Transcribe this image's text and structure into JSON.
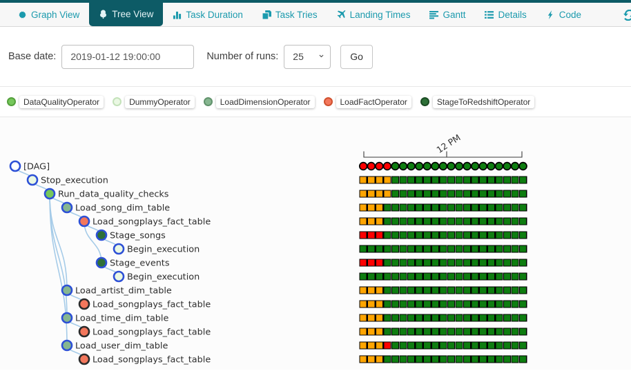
{
  "nav": {
    "accent": "#1b9aad",
    "active_bg": "#0d5b66",
    "active_fg": "#e4f3f5",
    "refresh_icon": "refresh-icon",
    "tabs": [
      {
        "label": "Graph View",
        "icon": "graph-view-icon",
        "active": false
      },
      {
        "label": "Tree View",
        "icon": "tree-view-icon",
        "active": true
      },
      {
        "label": "Task Duration",
        "icon": "task-duration-icon",
        "active": false
      },
      {
        "label": "Task Tries",
        "icon": "task-tries-icon",
        "active": false
      },
      {
        "label": "Landing Times",
        "icon": "landing-times-icon",
        "active": false
      },
      {
        "label": "Gantt",
        "icon": "gantt-icon",
        "active": false
      },
      {
        "label": "Details",
        "icon": "details-icon",
        "active": false
      },
      {
        "label": "Code",
        "icon": "code-icon",
        "active": false
      }
    ]
  },
  "form": {
    "base_date_label": "Base date:",
    "base_date_value": "2019-01-12 19:00:00",
    "runs_label": "Number of runs:",
    "runs_value": "25",
    "go_label": "Go"
  },
  "operators": {
    "DataQualityOperator": {
      "fill": "#76c75b",
      "border": "#54a03c"
    },
    "DummyOperator": {
      "fill": "#eaf8e3",
      "border": "#c4e2ba"
    },
    "LoadDimensionOperator": {
      "fill": "#86b690",
      "border": "#61926c"
    },
    "LoadFactOperator": {
      "fill": "#f3775c",
      "border": "#d0512f"
    },
    "StageToRedshiftOperator": {
      "fill": "#2e7038",
      "border": "#1c4c24"
    },
    "none": {
      "fill": "#ffffff",
      "border": "#ffffff"
    }
  },
  "legend_order": [
    "DataQualityOperator",
    "DummyOperator",
    "LoadDimensionOperator",
    "LoadFactOperator",
    "StageToRedshiftOperator"
  ],
  "ring_colors": {
    "blue": "#2d50d6",
    "black": "#2b2b2b"
  },
  "status_colors": {
    "S": "#0e7d10",
    "F": "#fe0000",
    "U": "#ffa500"
  },
  "edge_color": "#a5cbe8",
  "tree": {
    "nodes": [
      {
        "label": "[DAG]",
        "depth": 0,
        "operator": "none",
        "ring": "blue"
      },
      {
        "label": "Stop_execution",
        "depth": 1,
        "operator": "DummyOperator",
        "ring": "blue"
      },
      {
        "label": "Run_data_quality_checks",
        "depth": 2,
        "operator": "DataQualityOperator",
        "ring": "blue"
      },
      {
        "label": "Load_song_dim_table",
        "depth": 3,
        "operator": "LoadDimensionOperator",
        "ring": "blue"
      },
      {
        "label": "Load_songplays_fact_table",
        "depth": 4,
        "operator": "LoadFactOperator",
        "ring": "blue"
      },
      {
        "label": "Stage_songs",
        "depth": 5,
        "operator": "StageToRedshiftOperator",
        "ring": "blue"
      },
      {
        "label": "Begin_execution",
        "depth": 6,
        "operator": "DummyOperator",
        "ring": "blue"
      },
      {
        "label": "Stage_events",
        "depth": 5,
        "operator": "StageToRedshiftOperator",
        "ring": "blue"
      },
      {
        "label": "Begin_execution",
        "depth": 6,
        "operator": "DummyOperator",
        "ring": "blue"
      },
      {
        "label": "Load_artist_dim_table",
        "depth": 3,
        "operator": "LoadDimensionOperator",
        "ring": "blue"
      },
      {
        "label": "Load_songplays_fact_table",
        "depth": 4,
        "operator": "LoadFactOperator",
        "ring": "black"
      },
      {
        "label": "Load_time_dim_table",
        "depth": 3,
        "operator": "LoadDimensionOperator",
        "ring": "blue"
      },
      {
        "label": "Load_songplays_fact_table",
        "depth": 4,
        "operator": "LoadFactOperator",
        "ring": "black"
      },
      {
        "label": "Load_user_dim_table",
        "depth": 3,
        "operator": "LoadDimensionOperator",
        "ring": "blue"
      },
      {
        "label": "Load_songplays_fact_table",
        "depth": 4,
        "operator": "LoadFactOperator",
        "ring": "black"
      }
    ],
    "edges": [
      [
        0,
        1
      ],
      [
        1,
        2
      ],
      [
        2,
        3
      ],
      [
        3,
        4
      ],
      [
        4,
        5
      ],
      [
        5,
        6
      ],
      [
        4,
        7
      ],
      [
        7,
        8
      ],
      [
        2,
        9
      ],
      [
        9,
        10
      ],
      [
        2,
        11
      ],
      [
        11,
        12
      ],
      [
        2,
        13
      ],
      [
        13,
        14
      ]
    ]
  },
  "grid": {
    "time_axis_label": "12 PM",
    "dag_runs": "FFFFSSSSSSSSSSSSSSSSS",
    "rows": [
      "UUUUSSSSSSSSSSSSSSSSS",
      "UUUUSSSSSSSSSSSSSSSSS",
      "UUUSSSSSSSSSSSSSSSSSS",
      "UUUSSSSSSSSSSSSSSSSSS",
      "FFFSSSSSSSSSSSSSSSSSS",
      "SSSSSSSSSSSSSSSSSSSSS",
      "FFFSSSSSSSSSSSSSSSSSS",
      "SSSSSSSSSSSSSSSSSSSSS",
      "UUUSSSSSSSSSSSSSSSSSS",
      "UUUSSSSSSSSSSSSSSSSSS",
      "UUUSSSSSSSSSSSSSSSSSS",
      "UUUSSSSSSSSSSSSSSSSSS",
      "UUUFSSSSSSSSSSSSSSSSS",
      "UUUSSSSSSSSSSSSSSSSSS"
    ]
  }
}
